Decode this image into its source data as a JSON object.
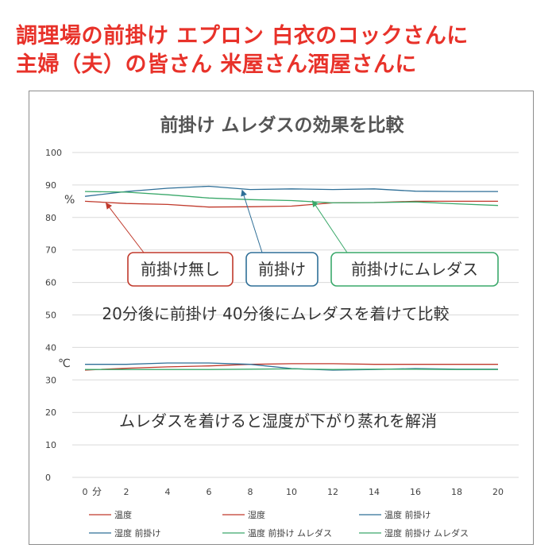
{
  "headlines": {
    "line1": "調理場の前掛け エプロン 白衣のコックさんに",
    "line2": "主婦（夫）の皆さん 米屋さん酒屋さんに"
  },
  "chart_data": {
    "type": "line",
    "title": "前掛け ムレダスの効果を比較",
    "x": [
      0,
      2,
      4,
      6,
      8,
      10,
      12,
      14,
      16,
      18,
      20
    ],
    "x_tick_labels": [
      "0",
      "2",
      "4",
      "6",
      "8",
      "10",
      "12",
      "14",
      "16",
      "18",
      "20"
    ],
    "x_unit_label": "分",
    "ylim": [
      0,
      100
    ],
    "y_ticks": [
      "0",
      "10",
      "20",
      "30",
      "40",
      "50",
      "60",
      "70",
      "80",
      "90",
      "100"
    ],
    "unit_percent": "%",
    "unit_celsius": "℃",
    "grid": true,
    "legend_position": "bottom",
    "series": [
      {
        "name": "温度",
        "color": "#c0392b",
        "values": [
          33.0,
          33.6,
          34.0,
          34.3,
          34.8,
          35.0,
          35.0,
          34.8,
          34.8,
          34.8,
          34.8
        ]
      },
      {
        "name": "湿度",
        "color": "#c0392b",
        "values": [
          85.0,
          84.3,
          84.0,
          83.2,
          83.3,
          83.5,
          84.5,
          84.6,
          85.0,
          85.0,
          85.0
        ]
      },
      {
        "name": "温度 前掛け",
        "color": "#2f6f97",
        "values": [
          34.8,
          34.8,
          35.2,
          35.2,
          34.8,
          33.5,
          33.0,
          33.2,
          33.5,
          33.3,
          33.3
        ]
      },
      {
        "name": "湿度 前掛け",
        "color": "#2f6f97",
        "values": [
          86.5,
          88.0,
          89.0,
          89.6,
          88.6,
          88.8,
          88.6,
          88.8,
          88.1,
          88.0,
          88.0
        ]
      },
      {
        "name": "温度 前掛け ムレダス",
        "color": "#3aa86a",
        "values": [
          33.2,
          33.2,
          33.2,
          33.2,
          33.3,
          33.4,
          33.2,
          33.3,
          33.3,
          33.2,
          33.2
        ]
      },
      {
        "name": "湿度 前掛け ムレダス",
        "color": "#3aa86a",
        "values": [
          88.0,
          87.8,
          87.0,
          86.0,
          85.5,
          85.2,
          84.5,
          84.6,
          84.8,
          84.2,
          83.7
        ]
      }
    ],
    "annotations": [
      {
        "text": "前掛け無し",
        "color": "#c0392b",
        "points_to": {
          "x": 1,
          "y": 84.6
        }
      },
      {
        "text": "前掛け",
        "color": "#2f6f97",
        "points_to": {
          "x": 7.6,
          "y": 88.6
        }
      },
      {
        "text": "前掛けにムレダス",
        "color": "#3aa86a",
        "points_to": {
          "x": 11,
          "y": 85.3
        }
      }
    ],
    "notes": [
      "20分後に前掛け 40分後にムレダスを着けて比較",
      "ムレダスを着けると湿度が下がり蒸れを解消"
    ]
  }
}
